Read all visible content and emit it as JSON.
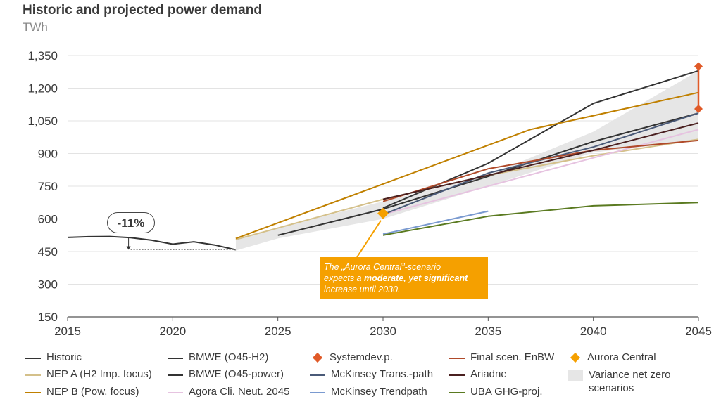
{
  "title": "Historic and projected power demand",
  "unit": "TWh",
  "annotation_pct": "-11%",
  "callout": {
    "p1": "The „Aurora Central”-scenario",
    "p2a": "expects a ",
    "p2b": "moderate, yet significant",
    "p3": "increase until 2030."
  },
  "chart_data": {
    "type": "line",
    "title": "Historic and projected power demand",
    "ylabel": "TWh",
    "xlim": [
      2015,
      2045
    ],
    "ylim": [
      150,
      1350
    ],
    "xticks": [
      2015,
      2020,
      2025,
      2030,
      2035,
      2040,
      2045
    ],
    "yticks": [
      150,
      300,
      450,
      600,
      750,
      900,
      1050,
      1200,
      1350
    ],
    "ytick_labels": [
      "150",
      "300",
      "450",
      "600",
      "750",
      "900",
      "1,050",
      "1,200",
      "1,350"
    ],
    "variance_band": {
      "name": "Variance net zero scenarios",
      "upper": [
        [
          2023,
          505
        ],
        [
          2025,
          560
        ],
        [
          2030,
          680
        ],
        [
          2035,
          800
        ],
        [
          2040,
          1000
        ],
        [
          2045,
          1280
        ]
      ],
      "lower": [
        [
          2045,
          960
        ],
        [
          2040,
          905
        ],
        [
          2035,
          750
        ],
        [
          2030,
          600
        ],
        [
          2025,
          510
        ],
        [
          2023,
          455
        ]
      ]
    },
    "series": [
      {
        "name": "Historic",
        "color": "#333333",
        "points": [
          [
            2015,
            515
          ],
          [
            2016,
            518
          ],
          [
            2017,
            519
          ],
          [
            2018,
            514
          ],
          [
            2019,
            502
          ],
          [
            2020,
            484
          ],
          [
            2021,
            495
          ],
          [
            2022,
            480
          ],
          [
            2023,
            458
          ]
        ]
      },
      {
        "name": "BMWE (O45-H2)",
        "color": "#333333",
        "points": [
          [
            2030,
            650
          ],
          [
            2035,
            855
          ],
          [
            2040,
            1130
          ],
          [
            2045,
            1280
          ]
        ]
      },
      {
        "name": "BMWE (O45-power)",
        "color": "#333333",
        "points": [
          [
            2025,
            525
          ],
          [
            2030,
            645
          ],
          [
            2035,
            795
          ],
          [
            2040,
            955
          ],
          [
            2045,
            1085
          ]
        ]
      },
      {
        "name": "NEP A (H2 Imp. focus)",
        "color": "#d4c08a",
        "points": [
          [
            2023,
            505
          ],
          [
            2030,
            690
          ],
          [
            2035,
            800
          ],
          [
            2040,
            890
          ],
          [
            2045,
            965
          ]
        ]
      },
      {
        "name": "NEP B (Pow. focus)",
        "color": "#c08000",
        "points": [
          [
            2023,
            510
          ],
          [
            2030,
            760
          ],
          [
            2037,
            1010
          ],
          [
            2045,
            1180
          ]
        ]
      },
      {
        "name": "Agora Cli. Neut. 2045",
        "color": "#e6c3e0",
        "points": [
          [
            2030,
            620
          ],
          [
            2035,
            750
          ],
          [
            2040,
            880
          ],
          [
            2045,
            1010
          ]
        ]
      },
      {
        "name": "McKinsey Trans.-path",
        "color": "#4a5a78",
        "points": [
          [
            2030,
            620
          ],
          [
            2035,
            810
          ],
          [
            2040,
            930
          ],
          [
            2045,
            1085
          ]
        ]
      },
      {
        "name": "McKinsey Trendpath",
        "color": "#7a9ad0",
        "points": [
          [
            2030,
            530
          ],
          [
            2035,
            635
          ]
        ]
      },
      {
        "name": "Final scen. EnBW",
        "color": "#b04a2a",
        "points": [
          [
            2030,
            680
          ],
          [
            2035,
            830
          ],
          [
            2040,
            915
          ],
          [
            2045,
            960
          ]
        ]
      },
      {
        "name": "Ariadne",
        "color": "#4a2020",
        "points": [
          [
            2030,
            690
          ],
          [
            2035,
            800
          ],
          [
            2040,
            915
          ],
          [
            2045,
            1040
          ]
        ]
      },
      {
        "name": "UBA GHG-proj.",
        "color": "#5a7a20",
        "points": [
          [
            2030,
            525
          ],
          [
            2035,
            612
          ],
          [
            2040,
            660
          ],
          [
            2045,
            675
          ]
        ]
      }
    ],
    "markers": [
      {
        "name": "Systemdev.p.",
        "color": "#e05a28",
        "points": [
          [
            2045,
            1300
          ],
          [
            2045,
            1105
          ]
        ]
      },
      {
        "name": "Aurora Central",
        "color": "#f5a000",
        "points": [
          [
            2030,
            625
          ]
        ]
      }
    ],
    "historic_reference": {
      "from": [
        2018,
        514
      ],
      "to": [
        2023,
        458
      ],
      "label": "-11%"
    }
  },
  "legend": [
    {
      "label": "Historic",
      "kind": "line",
      "color": "#333333"
    },
    {
      "label": "BMWE (O45-H2)",
      "kind": "line",
      "color": "#333333"
    },
    {
      "label": "Systemdev.p.",
      "kind": "diamond",
      "color": "#e05a28"
    },
    {
      "label": "Final scen. EnBW",
      "kind": "line",
      "color": "#b04a2a"
    },
    {
      "label": "Aurora Central",
      "kind": "diamond",
      "color": "#f5a000"
    },
    {
      "label": "NEP A (H2 Imp. focus)",
      "kind": "line",
      "color": "#d4c08a"
    },
    {
      "label": "BMWE (O45-power)",
      "kind": "line",
      "color": "#333333"
    },
    {
      "label": "McKinsey Trans.-path",
      "kind": "line",
      "color": "#4a5a78"
    },
    {
      "label": "Ariadne",
      "kind": "line",
      "color": "#4a2020"
    },
    {
      "label": "Variance net zero scenarios",
      "kind": "area",
      "color": "#e6e6e6"
    },
    {
      "label": "NEP B (Pow. focus)",
      "kind": "line",
      "color": "#c08000"
    },
    {
      "label": "Agora Cli. Neut. 2045",
      "kind": "line",
      "color": "#e6c3e0"
    },
    {
      "label": "McKinsey Trendpath",
      "kind": "line",
      "color": "#7a9ad0"
    },
    {
      "label": "UBA GHG-proj.",
      "kind": "line",
      "color": "#5a7a20"
    }
  ]
}
